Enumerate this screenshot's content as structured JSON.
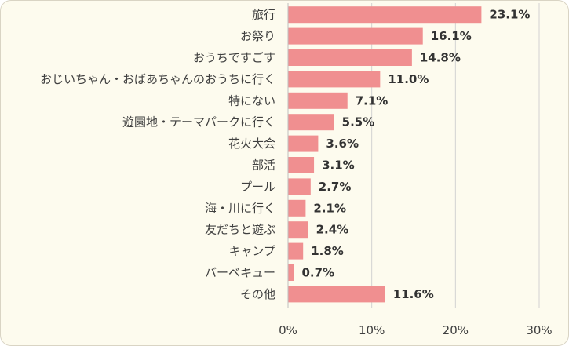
{
  "chart_data": {
    "type": "bar",
    "orientation": "horizontal",
    "categories": [
      "旅行",
      "お祭り",
      "おうちですごす",
      "おじいちゃん・おばあちゃんのおうちに行く",
      "特にない",
      "遊園地・テーマパークに行く",
      "花火大会",
      "部活",
      "プール",
      "海・川に行く",
      "友だちと遊ぶ",
      "キャンプ",
      "バーベキュー",
      "その他"
    ],
    "values": [
      23.1,
      16.1,
      14.8,
      11.0,
      7.1,
      5.5,
      3.6,
      3.1,
      2.7,
      2.1,
      2.4,
      1.8,
      0.7,
      11.6
    ],
    "value_labels": [
      "23.1%",
      "16.1%",
      "14.8%",
      "11.0%",
      "7.1%",
      "5.5%",
      "3.6%",
      "3.1%",
      "2.7%",
      "2.1%",
      "2.4%",
      "1.8%",
      "0.7%",
      "11.6%"
    ],
    "xlim": [
      0,
      30
    ],
    "x_ticks": [
      0,
      10,
      20,
      30
    ],
    "x_tick_labels": [
      "0%",
      "10%",
      "20%",
      "30%"
    ],
    "grid": true,
    "colors": {
      "bar": "#f08f90",
      "grid": "#d2d2d2",
      "background": "#fdfbee"
    }
  }
}
